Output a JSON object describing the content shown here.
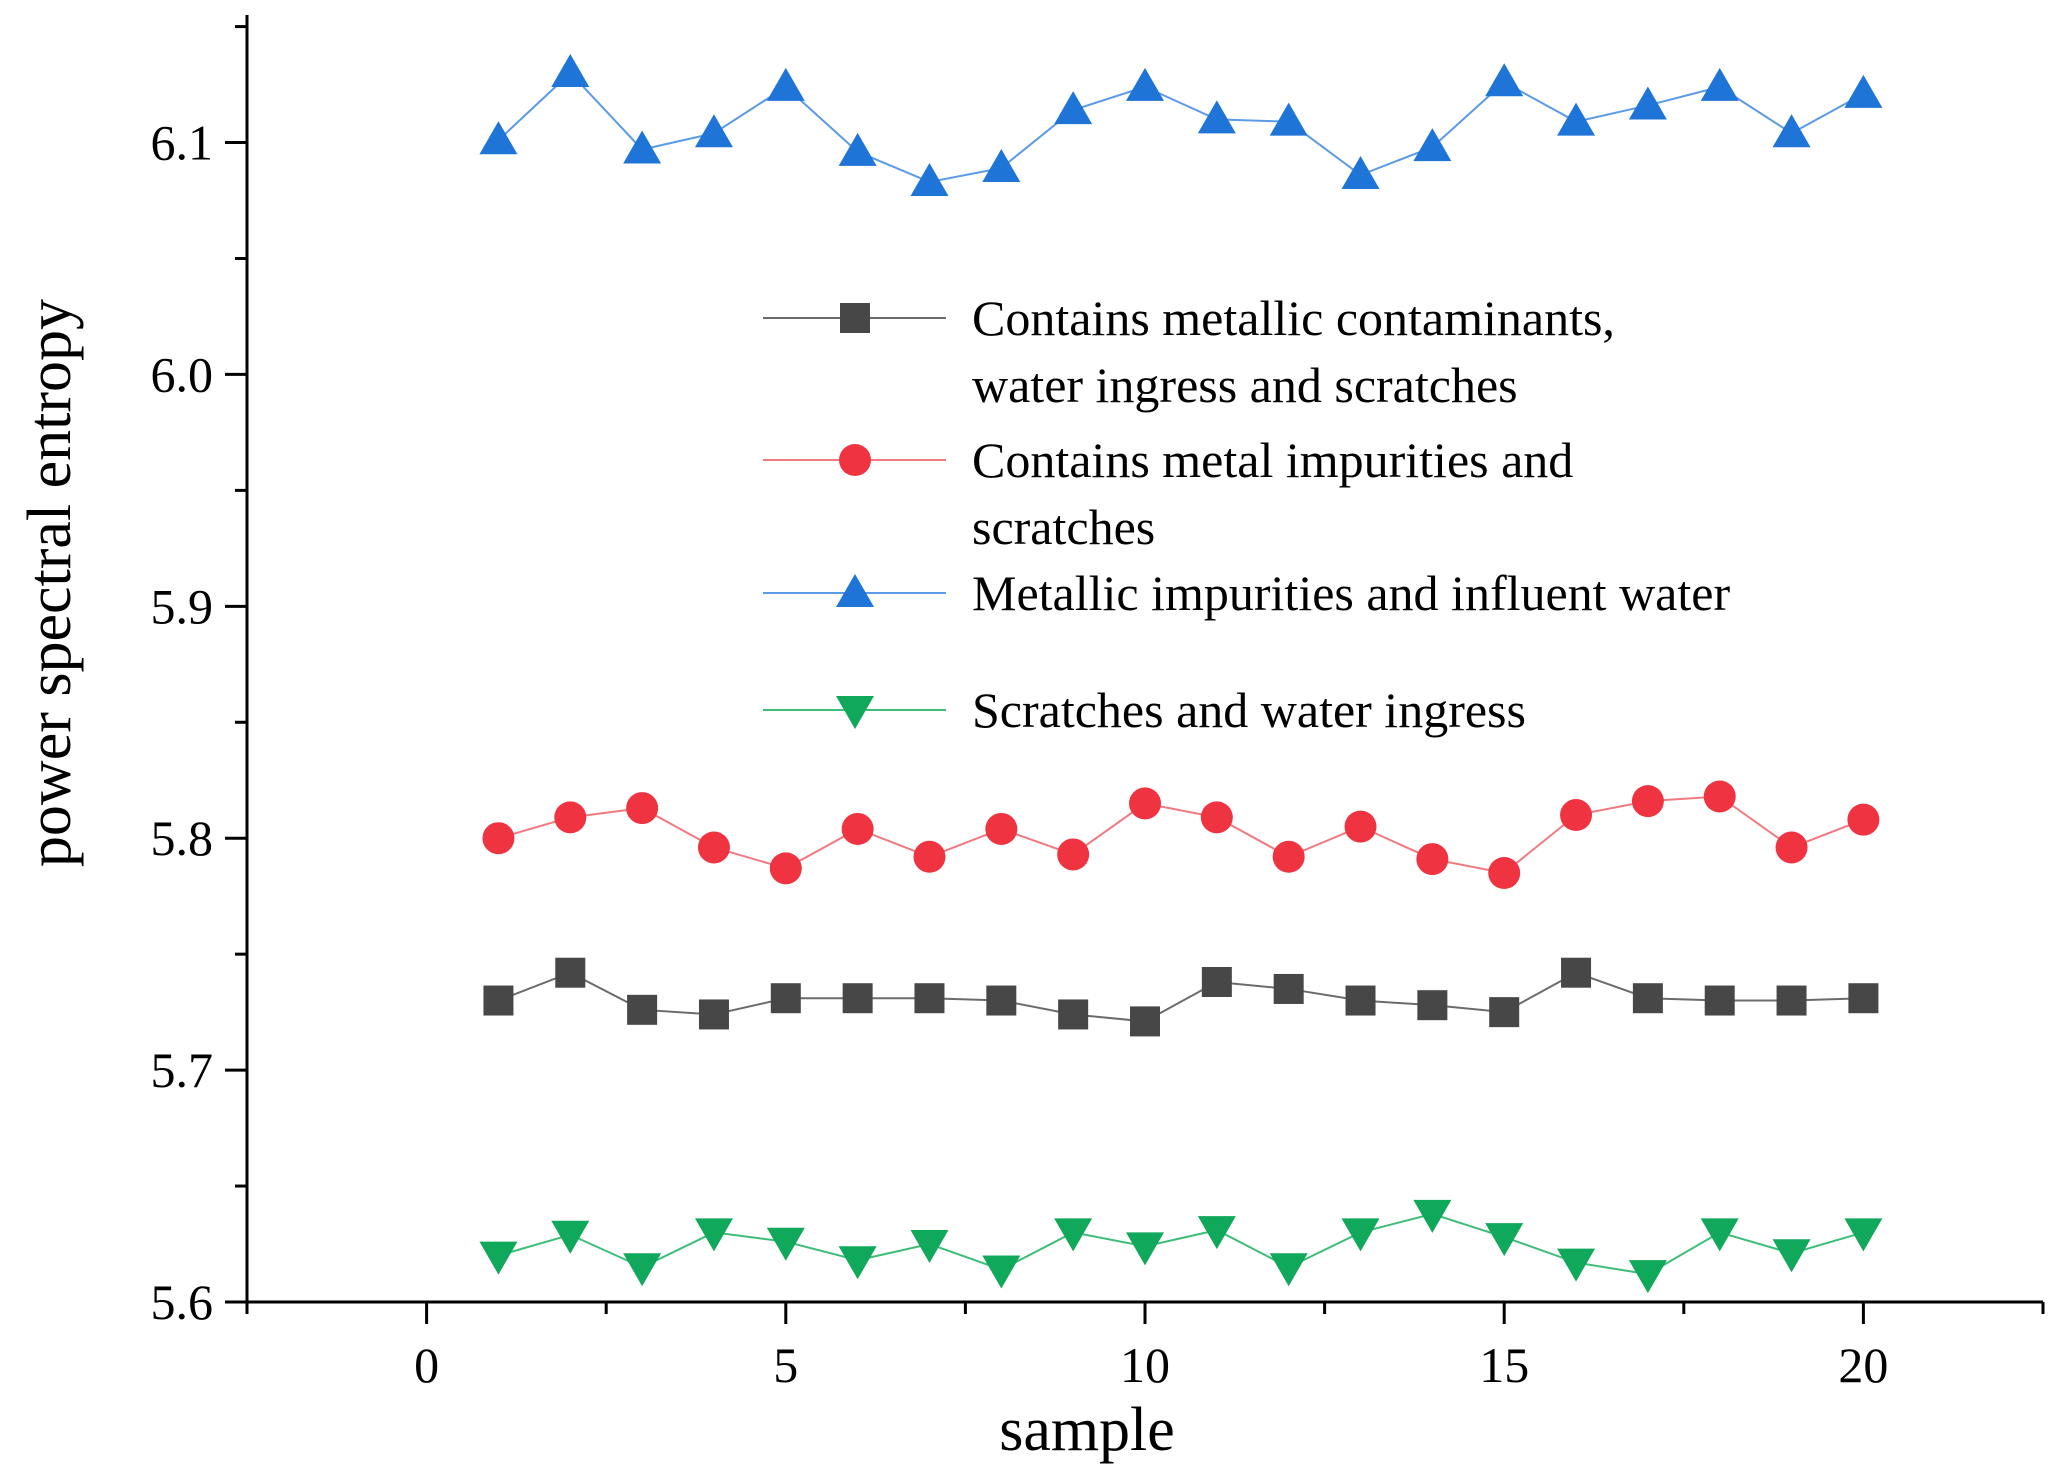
{
  "chart_data": {
    "type": "line",
    "title": "",
    "xlabel": "sample",
    "ylabel": "power spectral entropy",
    "xlim": [
      -2.5,
      22.5
    ],
    "ylim": [
      5.6,
      6.155
    ],
    "x_ticks": [
      0,
      5,
      10,
      15,
      20
    ],
    "x_tick_labels": [
      "0",
      "5",
      "10",
      "15",
      "20"
    ],
    "y_ticks": [
      5.6,
      5.7,
      5.8,
      5.9,
      6.0,
      6.1
    ],
    "y_tick_labels": [
      "5.6",
      "5.7",
      "5.8",
      "5.9",
      "6.0",
      "6.1"
    ],
    "grid": false,
    "legend_position": "center-right",
    "x": [
      1,
      2,
      3,
      4,
      5,
      6,
      7,
      8,
      9,
      10,
      11,
      12,
      13,
      14,
      15,
      16,
      17,
      18,
      19,
      20
    ],
    "series": [
      {
        "name": "Contains metallic contaminants, water ingress and scratches",
        "legend_lines": [
          "Contains metallic contaminants,",
          "water ingress and scratches"
        ],
        "marker": "square",
        "color": "#474747",
        "line_color": "#6b6b6b",
        "values": [
          5.73,
          5.742,
          5.726,
          5.724,
          5.731,
          5.731,
          5.731,
          5.73,
          5.724,
          5.721,
          5.738,
          5.735,
          5.73,
          5.728,
          5.725,
          5.742,
          5.731,
          5.73,
          5.73,
          5.731
        ]
      },
      {
        "name": "Contains metal impurities and scratches",
        "legend_lines": [
          "Contains metal impurities and",
          "scratches"
        ],
        "marker": "circle",
        "color": "#ef3340",
        "line_color": "#f07a80",
        "values": [
          5.8,
          5.809,
          5.813,
          5.796,
          5.787,
          5.804,
          5.792,
          5.804,
          5.793,
          5.815,
          5.809,
          5.792,
          5.805,
          5.791,
          5.785,
          5.81,
          5.816,
          5.818,
          5.796,
          5.808
        ]
      },
      {
        "name": "Metallic impurities and influent water",
        "legend_lines": [
          "Metallic impurities and influent water"
        ],
        "marker": "triangle-up",
        "color": "#1f74d8",
        "line_color": "#5a9ae6",
        "values": [
          6.101,
          6.13,
          6.097,
          6.104,
          6.124,
          6.096,
          6.083,
          6.089,
          6.114,
          6.124,
          6.11,
          6.109,
          6.086,
          6.098,
          6.126,
          6.109,
          6.116,
          6.124,
          6.104,
          6.121
        ]
      },
      {
        "name": "Scratches and water ingress",
        "legend_lines": [
          "Scratches and water ingress"
        ],
        "marker": "triangle-down",
        "color": "#10a85a",
        "line_color": "#3dbd78",
        "values": [
          5.62,
          5.629,
          5.615,
          5.63,
          5.626,
          5.618,
          5.625,
          5.614,
          5.63,
          5.624,
          5.631,
          5.615,
          5.63,
          5.638,
          5.628,
          5.617,
          5.612,
          5.63,
          5.621,
          5.63
        ]
      }
    ]
  }
}
